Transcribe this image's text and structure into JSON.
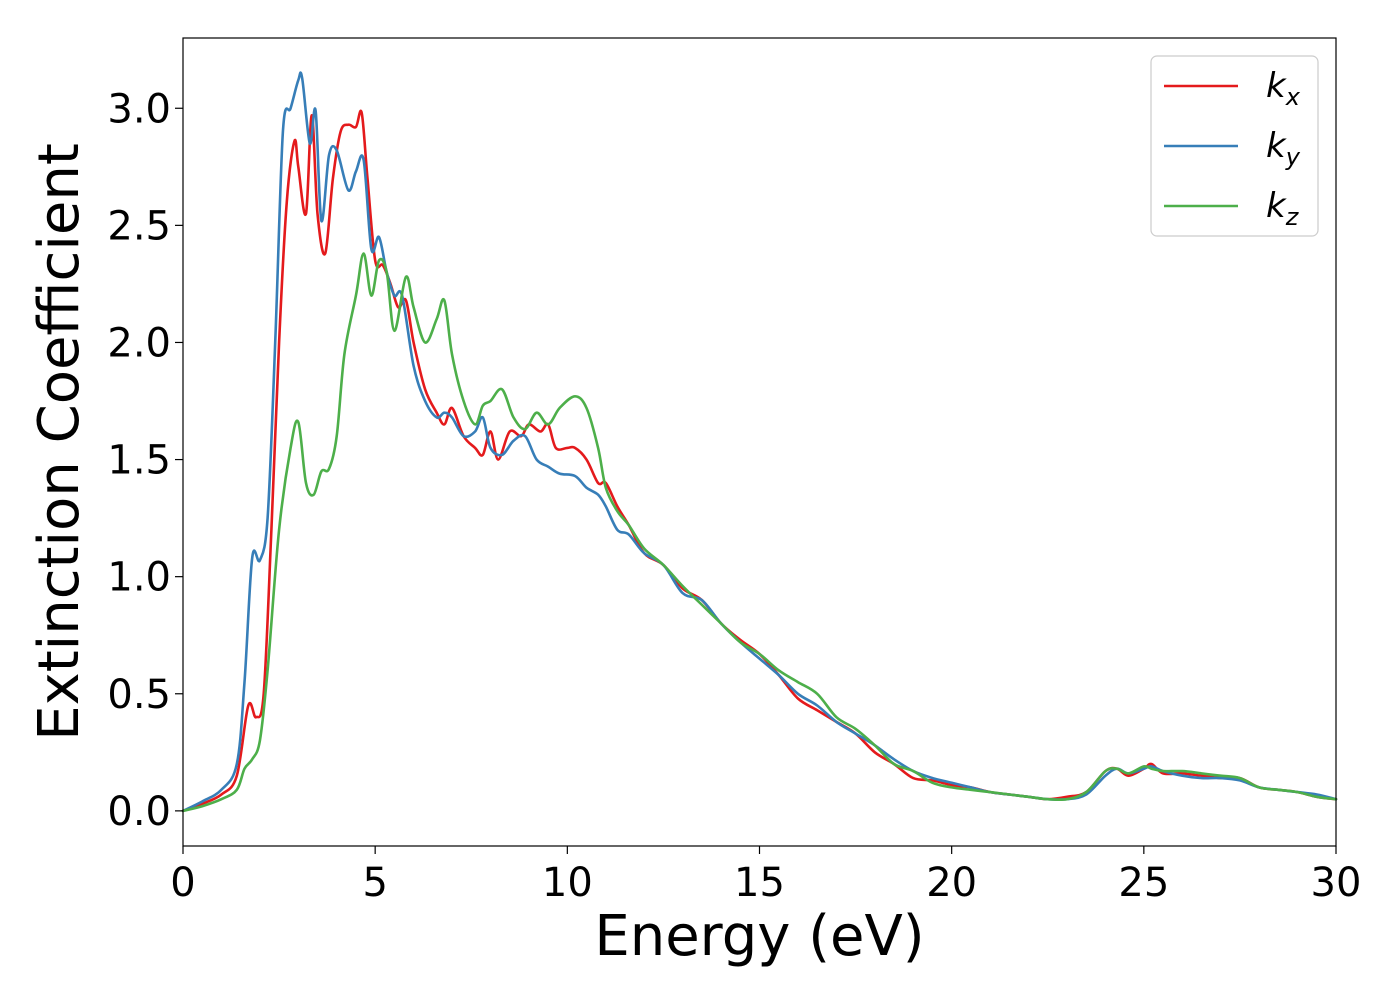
{
  "chart_data": {
    "type": "line",
    "xlabel": "Energy (eV)",
    "ylabel": "Extinction Coefficient",
    "xlim": [
      0,
      30
    ],
    "ylim": [
      -0.15,
      3.3
    ],
    "xticks": [
      0,
      5,
      10,
      15,
      20,
      25,
      30
    ],
    "xtick_labels": [
      "0",
      "5",
      "10",
      "15",
      "20",
      "25",
      "30"
    ],
    "yticks": [
      0.0,
      0.5,
      1.0,
      1.5,
      2.0,
      2.5,
      3.0
    ],
    "ytick_labels": [
      "0.0",
      "0.5",
      "1.0",
      "1.5",
      "2.0",
      "2.5",
      "3.0"
    ],
    "grid": false,
    "legend_position": "top-right",
    "series": [
      {
        "name": "k_x",
        "label_main": "k",
        "label_sub": "x",
        "color": "#e41a1c",
        "x": [
          0,
          0.5,
          1.0,
          1.4,
          1.7,
          1.9,
          2.1,
          2.3,
          2.5,
          2.7,
          2.9,
          3.0,
          3.2,
          3.35,
          3.5,
          3.7,
          3.9,
          4.1,
          4.3,
          4.5,
          4.65,
          4.8,
          5.0,
          5.2,
          5.4,
          5.6,
          5.8,
          6.0,
          6.3,
          6.6,
          6.8,
          7.0,
          7.3,
          7.6,
          7.8,
          8.0,
          8.2,
          8.5,
          8.8,
          9.0,
          9.3,
          9.5,
          9.7,
          10.0,
          10.2,
          10.5,
          10.8,
          11.0,
          11.3,
          11.6,
          12.0,
          12.5,
          13.0,
          13.5,
          14.0,
          14.5,
          15.0,
          15.5,
          16.0,
          16.5,
          17.0,
          17.5,
          18.0,
          18.5,
          19.0,
          19.5,
          20.0,
          20.5,
          21.0,
          21.5,
          22.0,
          22.5,
          23.0,
          23.5,
          24.0,
          24.3,
          24.6,
          25.0,
          25.2,
          25.5,
          26.0,
          26.5,
          27.0,
          27.5,
          28.0,
          28.5,
          29.0,
          29.5,
          30.0
        ],
        "y": [
          0.0,
          0.03,
          0.07,
          0.15,
          0.45,
          0.4,
          0.5,
          1.2,
          2.0,
          2.6,
          2.86,
          2.75,
          2.55,
          2.97,
          2.55,
          2.38,
          2.7,
          2.9,
          2.93,
          2.92,
          2.98,
          2.7,
          2.35,
          2.33,
          2.25,
          2.15,
          2.18,
          2.0,
          1.8,
          1.7,
          1.65,
          1.72,
          1.6,
          1.55,
          1.52,
          1.62,
          1.5,
          1.62,
          1.6,
          1.65,
          1.62,
          1.65,
          1.55,
          1.55,
          1.55,
          1.5,
          1.4,
          1.4,
          1.3,
          1.22,
          1.1,
          1.05,
          0.95,
          0.9,
          0.8,
          0.73,
          0.67,
          0.58,
          0.48,
          0.43,
          0.38,
          0.33,
          0.25,
          0.2,
          0.14,
          0.13,
          0.11,
          0.1,
          0.08,
          0.07,
          0.06,
          0.05,
          0.06,
          0.08,
          0.17,
          0.18,
          0.15,
          0.18,
          0.2,
          0.16,
          0.16,
          0.15,
          0.14,
          0.14,
          0.1,
          0.09,
          0.08,
          0.06,
          0.05
        ]
      },
      {
        "name": "k_y",
        "label_main": "k",
        "label_sub": "y",
        "color": "#377eb8",
        "x": [
          0,
          0.5,
          1.0,
          1.4,
          1.6,
          1.8,
          2.0,
          2.2,
          2.4,
          2.6,
          2.8,
          3.0,
          3.1,
          3.3,
          3.45,
          3.6,
          3.8,
          4.0,
          4.3,
          4.5,
          4.7,
          4.9,
          5.1,
          5.3,
          5.5,
          5.7,
          6.0,
          6.3,
          6.6,
          6.8,
          7.0,
          7.3,
          7.6,
          7.8,
          8.0,
          8.3,
          8.6,
          8.9,
          9.2,
          9.5,
          9.8,
          10.2,
          10.5,
          10.8,
          11.0,
          11.3,
          11.6,
          12.0,
          12.5,
          13.0,
          13.5,
          14.0,
          14.5,
          15.0,
          15.5,
          16.0,
          16.5,
          17.0,
          17.5,
          18.0,
          18.5,
          19.0,
          19.5,
          20.0,
          20.5,
          21.0,
          21.5,
          22.0,
          22.5,
          23.0,
          23.5,
          24.0,
          24.3,
          24.6,
          25.0,
          25.2,
          25.5,
          26.0,
          26.5,
          27.0,
          27.5,
          28.0,
          28.5,
          29.0,
          29.5,
          30.0
        ],
        "y": [
          0.0,
          0.04,
          0.09,
          0.2,
          0.55,
          1.08,
          1.07,
          1.25,
          2.0,
          2.9,
          3.0,
          3.12,
          3.13,
          2.85,
          2.99,
          2.52,
          2.8,
          2.82,
          2.65,
          2.73,
          2.78,
          2.4,
          2.45,
          2.3,
          2.2,
          2.2,
          1.9,
          1.75,
          1.68,
          1.7,
          1.68,
          1.6,
          1.62,
          1.68,
          1.55,
          1.52,
          1.58,
          1.6,
          1.5,
          1.47,
          1.44,
          1.43,
          1.38,
          1.35,
          1.3,
          1.2,
          1.18,
          1.1,
          1.05,
          0.93,
          0.9,
          0.8,
          0.72,
          0.65,
          0.58,
          0.5,
          0.45,
          0.38,
          0.33,
          0.28,
          0.22,
          0.17,
          0.14,
          0.12,
          0.1,
          0.08,
          0.07,
          0.06,
          0.05,
          0.05,
          0.07,
          0.15,
          0.18,
          0.16,
          0.18,
          0.19,
          0.17,
          0.15,
          0.14,
          0.14,
          0.13,
          0.1,
          0.09,
          0.08,
          0.07,
          0.05
        ]
      },
      {
        "name": "k_z",
        "label_main": "k",
        "label_sub": "z",
        "color": "#4daf4a",
        "x": [
          0,
          0.5,
          1.0,
          1.4,
          1.6,
          1.8,
          2.0,
          2.2,
          2.5,
          2.8,
          3.0,
          3.2,
          3.4,
          3.6,
          3.8,
          4.0,
          4.2,
          4.5,
          4.7,
          4.9,
          5.1,
          5.3,
          5.5,
          5.8,
          6.0,
          6.3,
          6.6,
          6.8,
          7.0,
          7.3,
          7.6,
          7.8,
          8.0,
          8.3,
          8.6,
          8.9,
          9.2,
          9.5,
          9.8,
          10.2,
          10.5,
          10.8,
          11.0,
          11.3,
          11.6,
          12.0,
          12.5,
          13.0,
          13.5,
          14.0,
          14.5,
          15.0,
          15.5,
          16.0,
          16.5,
          17.0,
          17.5,
          18.0,
          18.5,
          19.0,
          19.5,
          20.0,
          20.5,
          21.0,
          21.5,
          22.0,
          22.5,
          23.0,
          23.5,
          24.0,
          24.3,
          24.6,
          25.0,
          25.2,
          25.5,
          26.0,
          26.5,
          27.0,
          27.5,
          28.0,
          28.5,
          29.0,
          29.5,
          30.0
        ],
        "y": [
          0.0,
          0.02,
          0.05,
          0.09,
          0.18,
          0.22,
          0.3,
          0.6,
          1.2,
          1.55,
          1.66,
          1.4,
          1.35,
          1.45,
          1.46,
          1.6,
          1.95,
          2.2,
          2.38,
          2.2,
          2.35,
          2.3,
          2.05,
          2.28,
          2.15,
          2.0,
          2.1,
          2.18,
          1.95,
          1.75,
          1.65,
          1.73,
          1.75,
          1.8,
          1.68,
          1.63,
          1.7,
          1.65,
          1.72,
          1.77,
          1.72,
          1.55,
          1.38,
          1.28,
          1.22,
          1.12,
          1.05,
          0.96,
          0.88,
          0.8,
          0.72,
          0.67,
          0.6,
          0.55,
          0.5,
          0.4,
          0.35,
          0.28,
          0.2,
          0.17,
          0.12,
          0.1,
          0.09,
          0.08,
          0.07,
          0.06,
          0.05,
          0.05,
          0.08,
          0.17,
          0.18,
          0.16,
          0.19,
          0.18,
          0.17,
          0.17,
          0.16,
          0.15,
          0.14,
          0.1,
          0.09,
          0.08,
          0.06,
          0.05
        ]
      }
    ]
  }
}
